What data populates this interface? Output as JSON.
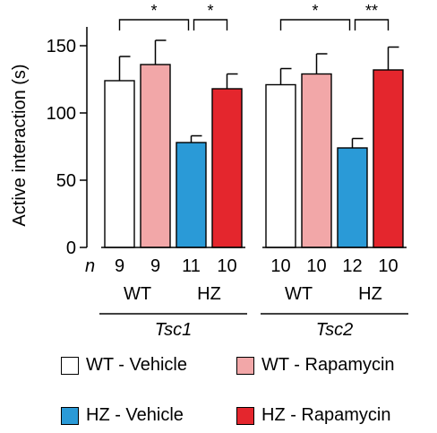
{
  "chart_data": {
    "type": "bar",
    "ylabel": "Active interaction (s)",
    "ylim": [
      0,
      160
    ],
    "yticks": [
      "0",
      "50",
      "100",
      "150"
    ],
    "n_label": "n",
    "groups": [
      {
        "gene": "Tsc1",
        "subgroups": [
          "WT",
          "HZ"
        ],
        "bars": [
          {
            "series": 0,
            "value": 124,
            "error": 18,
            "n": "9"
          },
          {
            "series": 1,
            "value": 136,
            "error": 18,
            "n": "9"
          },
          {
            "series": 2,
            "value": 78,
            "error": 5,
            "n": "11"
          },
          {
            "series": 3,
            "value": 118,
            "error": 11,
            "n": "10"
          }
        ],
        "significance": [
          {
            "from": 0,
            "to": 2,
            "label": "*"
          },
          {
            "from": 2,
            "to": 3,
            "label": "*"
          }
        ]
      },
      {
        "gene": "Tsc2",
        "subgroups": [
          "WT",
          "HZ"
        ],
        "bars": [
          {
            "series": 0,
            "value": 121,
            "error": 12,
            "n": "10"
          },
          {
            "series": 1,
            "value": 129,
            "error": 15,
            "n": "10"
          },
          {
            "series": 2,
            "value": 74,
            "error": 7,
            "n": "12"
          },
          {
            "series": 3,
            "value": 132,
            "error": 17,
            "n": "10"
          }
        ],
        "significance": [
          {
            "from": 0,
            "to": 2,
            "label": "*"
          },
          {
            "from": 2,
            "to": 3,
            "label": "**"
          }
        ]
      }
    ],
    "series": [
      {
        "name": "WT - Vehicle",
        "color": "#ffffff"
      },
      {
        "name": "WT - Rapamycin",
        "color": "#f2a7a8"
      },
      {
        "name": "HZ - Vehicle",
        "color": "#2a9ad7"
      },
      {
        "name": "HZ - Rapamycin",
        "color": "#e4262d"
      }
    ]
  }
}
